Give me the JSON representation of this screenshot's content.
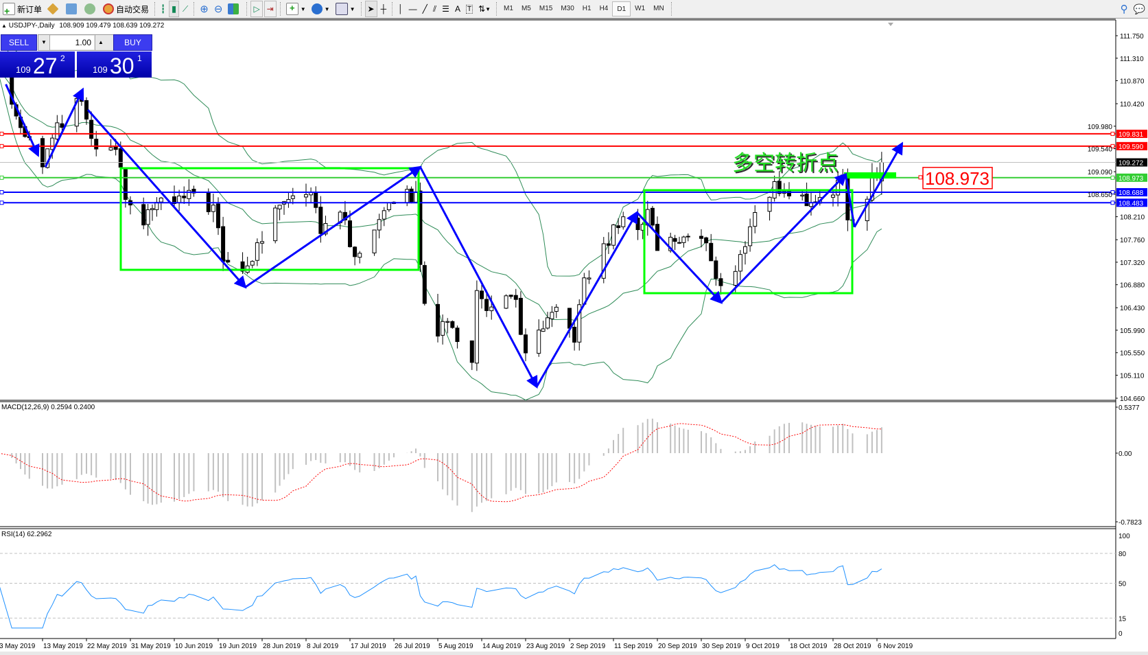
{
  "toolbar": {
    "new_order": "新订单",
    "auto_trading": "自动交易",
    "timeframes": [
      "M1",
      "M5",
      "M15",
      "M30",
      "H1",
      "H4",
      "D1",
      "W1",
      "MN"
    ],
    "active_timeframe": "D1",
    "icons": [
      "new-order-icon",
      "market-watch-icon",
      "navigator-icon",
      "signals-icon",
      "auto-trading-icon",
      "bar-chart-icon",
      "candlestick-icon",
      "line-chart-icon",
      "zoom-in-icon",
      "zoom-out-icon",
      "tile-windows-icon",
      "auto-scroll-icon",
      "chart-shift-icon",
      "indicators-icon",
      "periods-icon",
      "templates-icon",
      "cursor-icon",
      "crosshair-icon",
      "vertical-line-icon",
      "horizontal-line-icon",
      "trendline-icon",
      "equidistant-channel-icon",
      "fibonacci-icon",
      "text-icon",
      "text-label-icon",
      "arrows-icon",
      "search-icon",
      "chat-icon"
    ]
  },
  "chart": {
    "symbol_header": "USDJPY-,Daily",
    "ohlc": "108.909 109.479 108.639 109.272",
    "last_bar": {
      "open": 108.909,
      "high": 109.479,
      "low": 108.639,
      "close": 109.272
    },
    "price_axis": [
      "111.750",
      "111.310",
      "110.870",
      "110.420",
      "109.980",
      "109.540",
      "109.090",
      "108.650",
      "108.210",
      "107.760",
      "107.320",
      "106.880",
      "106.430",
      "105.990",
      "105.550",
      "105.110",
      "104.660"
    ],
    "date_axis": [
      "3 May 2019",
      "13 May 2019",
      "22 May 2019",
      "31 May 2019",
      "10 Jun 2019",
      "19 Jun 2019",
      "28 Jun 2019",
      "8 Jul 2019",
      "17 Jul 2019",
      "26 Jul 2019",
      "5 Aug 2019",
      "14 Aug 2019",
      "23 Aug 2019",
      "2 Sep 2019",
      "11 Sep 2019",
      "20 Sep 2019",
      "30 Sep 2019",
      "9 Oct 2019",
      "18 Oct 2019",
      "28 Oct 2019",
      "6 Nov 2019"
    ],
    "levels": [
      {
        "price": "109.831",
        "color": "#ff0000"
      },
      {
        "price": "109.590",
        "color": "#ff0000"
      },
      {
        "price": "108.973",
        "color": "#32cd32"
      },
      {
        "price": "108.688",
        "color": "#0000ff"
      },
      {
        "price": "108.483",
        "color": "#0000ff"
      }
    ],
    "bid_line": {
      "price": "109.272",
      "color": "#000000"
    },
    "annotation_text": "多空转折点",
    "annotation_label": "108.973",
    "colors": {
      "bands": "#2e8b57",
      "zigzag": "#0000ff",
      "boxes": "#00ff00",
      "bull": "#ffffff",
      "bear": "#000000"
    },
    "price_path": [
      [
        "2019-05-03",
        111.1
      ],
      [
        "2019-05-07",
        110.2
      ],
      [
        "2019-05-13",
        109.3
      ],
      [
        "2019-05-16",
        109.9
      ],
      [
        "2019-05-21",
        110.5
      ],
      [
        "2019-05-23",
        109.6
      ],
      [
        "2019-05-28",
        109.4
      ],
      [
        "2019-05-31",
        108.3
      ],
      [
        "2019-06-03",
        108.1
      ],
      [
        "2019-06-05",
        108.4
      ],
      [
        "2019-06-10",
        108.5
      ],
      [
        "2019-06-14",
        108.6
      ],
      [
        "2019-06-18",
        108.4
      ],
      [
        "2019-06-20",
        107.3
      ],
      [
        "2019-06-25",
        107.2
      ],
      [
        "2019-06-28",
        107.8
      ],
      [
        "2019-07-01",
        108.5
      ],
      [
        "2019-07-09",
        108.8
      ],
      [
        "2019-07-11",
        108.0
      ],
      [
        "2019-07-16",
        108.2
      ],
      [
        "2019-07-18",
        107.3
      ],
      [
        "2019-07-25",
        108.6
      ],
      [
        "2019-07-31",
        108.6
      ],
      [
        "2019-08-01",
        107.4
      ],
      [
        "2019-08-02",
        106.6
      ],
      [
        "2019-08-05",
        106.0
      ],
      [
        "2019-08-08",
        106.1
      ],
      [
        "2019-08-12",
        105.3
      ],
      [
        "2019-08-13",
        106.7
      ],
      [
        "2019-08-16",
        106.4
      ],
      [
        "2019-08-21",
        106.6
      ],
      [
        "2019-08-23",
        105.4
      ],
      [
        "2019-08-26",
        105.9
      ],
      [
        "2019-08-30",
        106.3
      ],
      [
        "2019-09-03",
        105.9
      ],
      [
        "2019-09-05",
        106.9
      ],
      [
        "2019-09-12",
        108.1
      ],
      [
        "2019-09-17",
        108.1
      ],
      [
        "2019-09-18",
        108.4
      ],
      [
        "2019-09-20",
        107.6
      ],
      [
        "2019-09-25",
        107.8
      ],
      [
        "2019-09-27",
        107.9
      ],
      [
        "2019-10-01",
        107.7
      ],
      [
        "2019-10-03",
        106.9
      ],
      [
        "2019-10-07",
        107.2
      ],
      [
        "2019-10-10",
        107.9
      ],
      [
        "2019-10-11",
        108.4
      ],
      [
        "2019-10-15",
        108.8
      ],
      [
        "2019-10-22",
        108.5
      ],
      [
        "2019-10-25",
        108.6
      ],
      [
        "2019-10-30",
        108.9
      ],
      [
        "2019-10-31",
        108.0
      ],
      [
        "2019-11-01",
        108.2
      ],
      [
        "2019-11-04",
        108.6
      ],
      [
        "2019-11-05",
        109.2
      ],
      [
        "2019-11-06",
        108.95
      ],
      [
        "2019-11-07",
        109.272
      ]
    ]
  },
  "trade_panel": {
    "sell_label": "SELL",
    "buy_label": "BUY",
    "lot": "1.00",
    "sell_price": {
      "big_figure": "109",
      "pips": "27",
      "fraction": "2"
    },
    "buy_price": {
      "big_figure": "109",
      "pips": "30",
      "fraction": "1"
    }
  },
  "macd": {
    "label": "MACD(12,26,9) 0.2594 0.2400",
    "axis": [
      "0.5377",
      "0.00",
      "-0.7823"
    ],
    "histogram_color": "#c0c0c0",
    "signal_color": "#ff0000"
  },
  "rsi": {
    "label": "RSI(14) 62.2962",
    "axis": [
      "100",
      "80",
      "50",
      "15",
      "0"
    ],
    "levels": [
      80,
      50,
      15
    ],
    "line_color": "#1e90ff"
  }
}
